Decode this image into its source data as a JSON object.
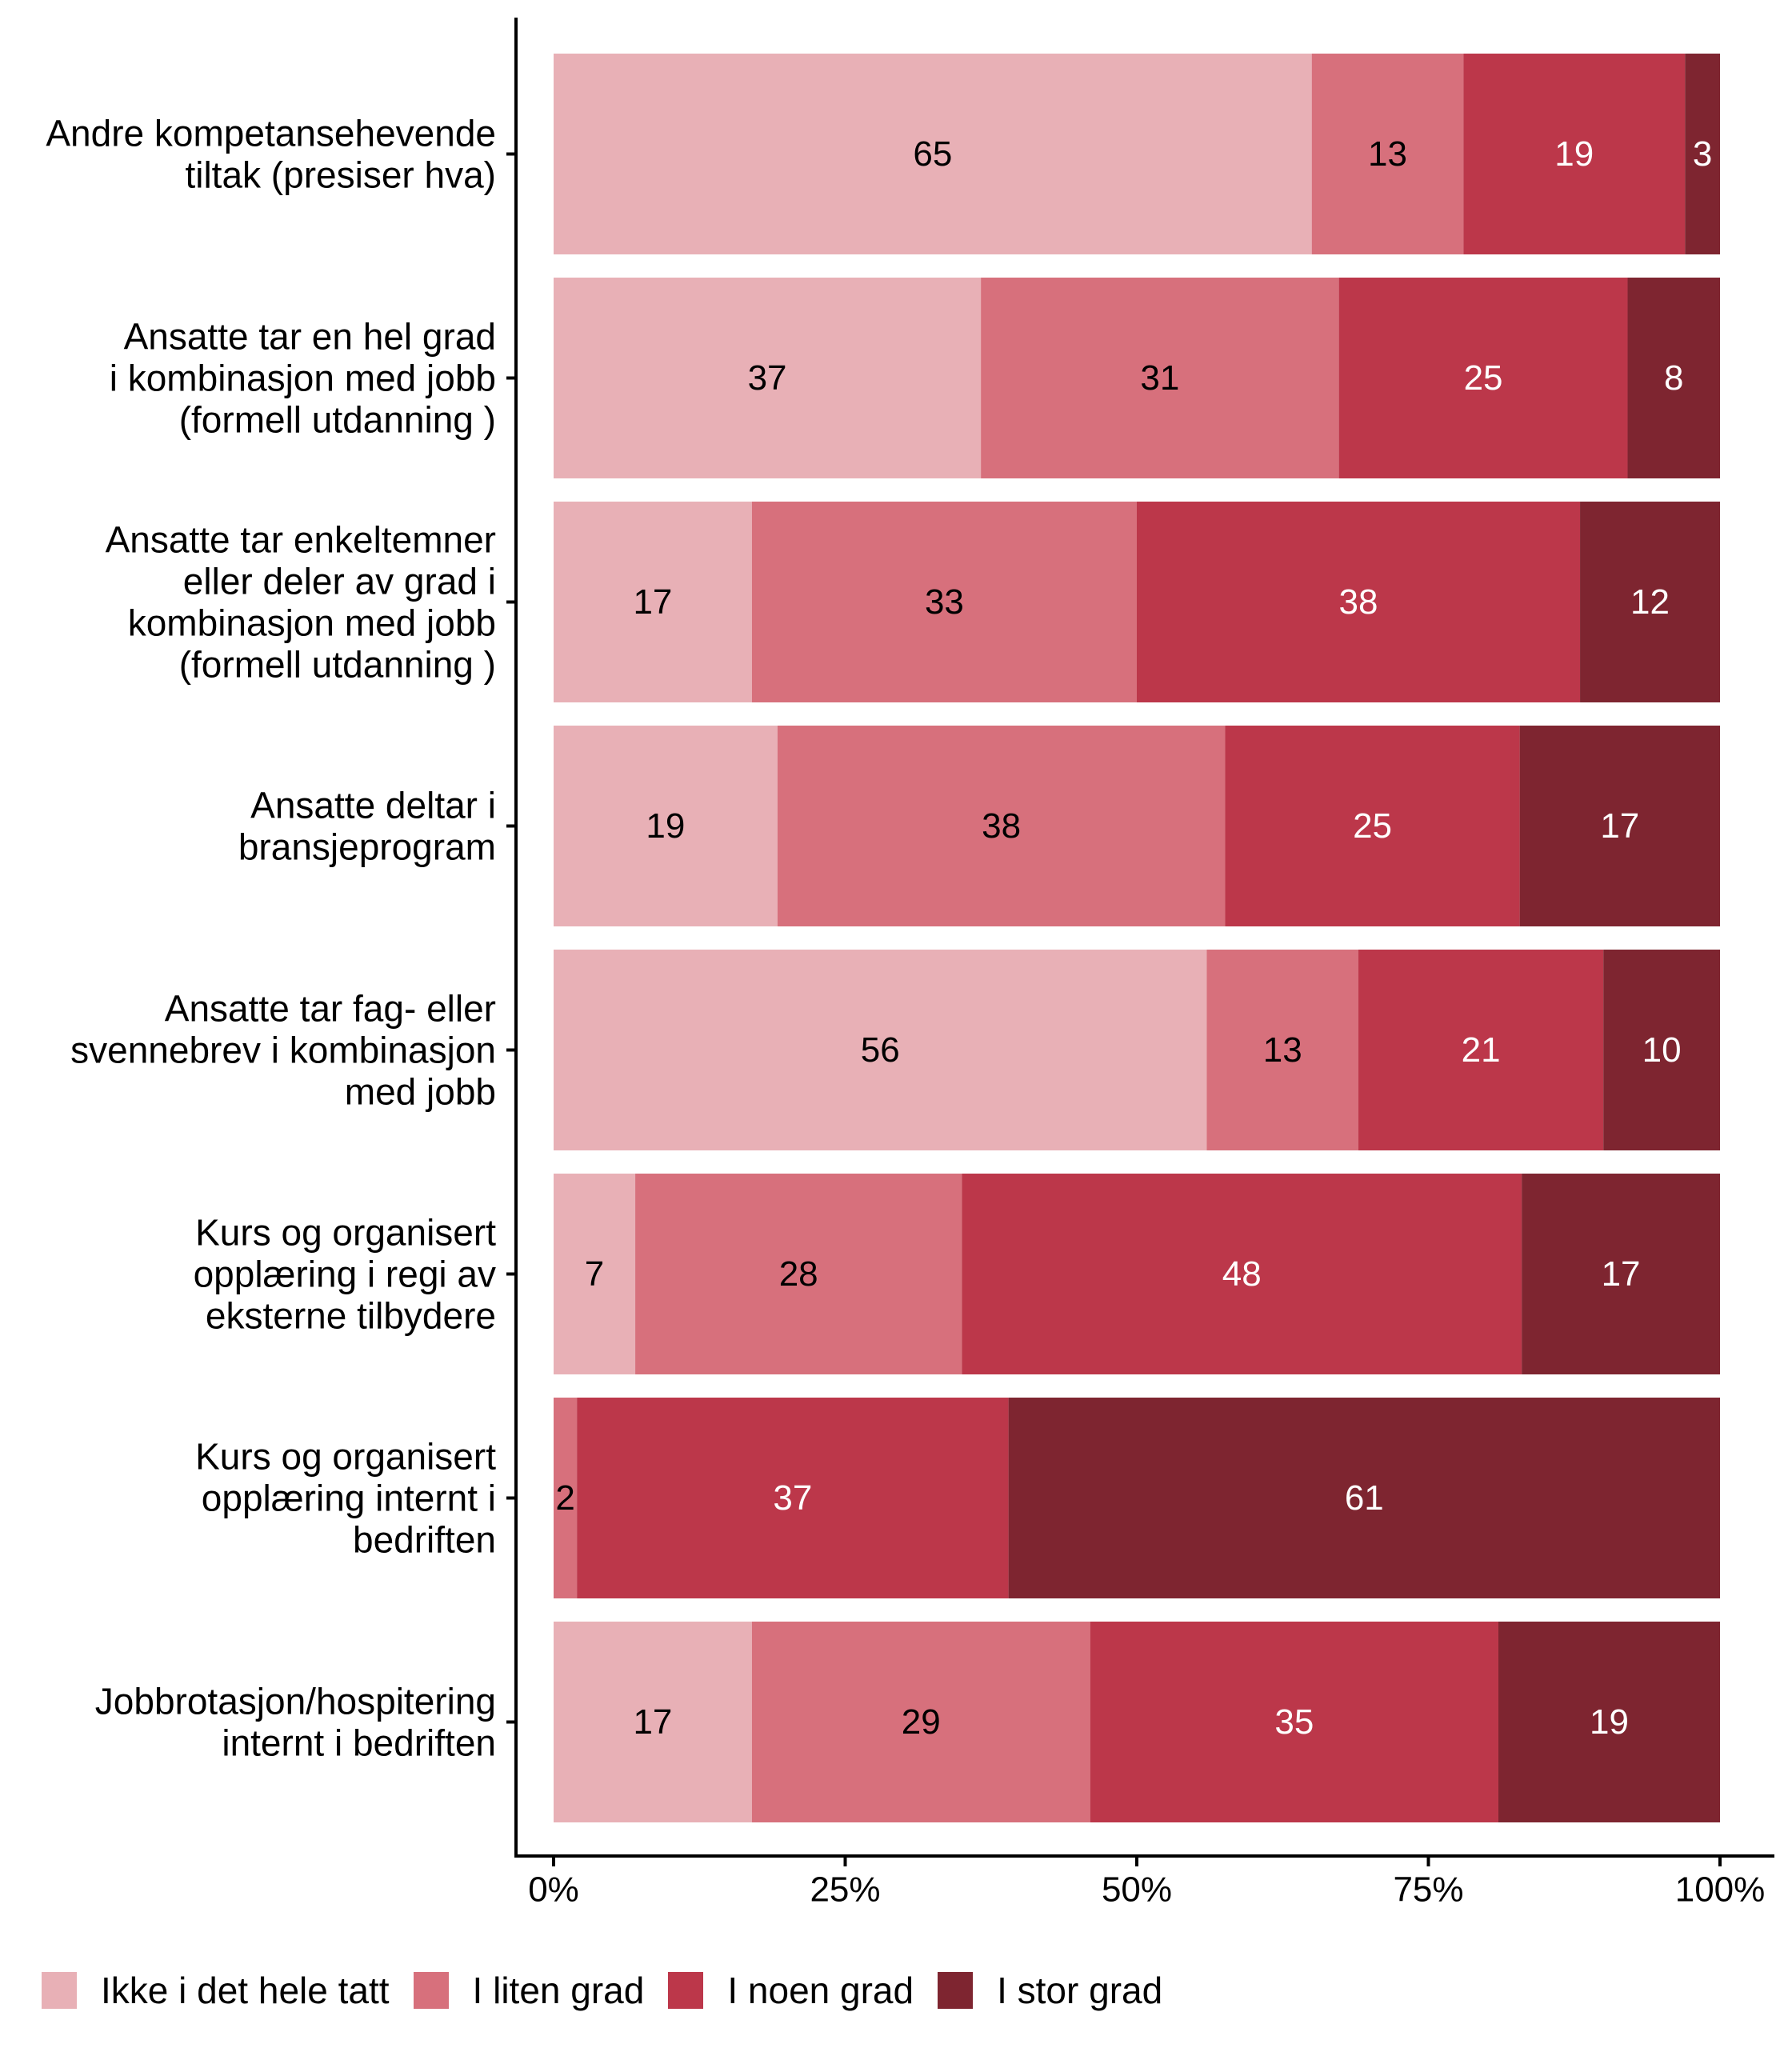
{
  "chart_data": {
    "type": "bar",
    "orientation": "horizontal",
    "stacked": "percent",
    "title": "",
    "xlabel": "",
    "ylabel": "",
    "xlim": [
      0,
      100
    ],
    "x_ticks": [
      "0%",
      "25%",
      "50%",
      "75%",
      "100%"
    ],
    "x_tick_values": [
      0,
      25,
      50,
      75,
      100
    ],
    "grid": false,
    "legend_position": "bottom",
    "categories": [
      [
        "Andre kompetansehevende",
        "tiltak (presiser hva)"
      ],
      [
        "Ansatte tar en hel grad",
        "i kombinasjon med jobb",
        "(formell utdanning )"
      ],
      [
        "Ansatte tar enkeltemner",
        "eller deler av grad i",
        "kombinasjon med jobb",
        "(formell utdanning )"
      ],
      [
        "Ansatte deltar i",
        "bransjeprogram"
      ],
      [
        "Ansatte tar fag- eller",
        "svennebrev i kombinasjon",
        "med jobb"
      ],
      [
        "Kurs og organisert",
        "opplæring i regi av",
        "eksterne tilbydere"
      ],
      [
        "Kurs og organisert",
        "opplæring internt i",
        "bedriften"
      ],
      [
        "Jobbrotasjon/hospitering",
        "internt i bedriften"
      ]
    ],
    "series": [
      {
        "name": "Ikke i det hele tatt",
        "color": "#E8B0B6",
        "label_color": "#000000",
        "values": [
          65,
          37,
          17,
          19,
          56,
          7,
          0,
          17
        ]
      },
      {
        "name": "I liten grad",
        "color": "#D7707C",
        "label_color": "#000000",
        "values": [
          13,
          31,
          33,
          38,
          13,
          28,
          2,
          29
        ]
      },
      {
        "name": "I noen grad",
        "color": "#BC374A",
        "label_color": "#FFFFFF",
        "values": [
          19,
          25,
          38,
          25,
          21,
          48,
          37,
          35
        ]
      },
      {
        "name": "I stor grad",
        "color": "#7E2530",
        "label_color": "#FFFFFF",
        "values": [
          3,
          8,
          12,
          17,
          10,
          17,
          61,
          19
        ]
      }
    ]
  }
}
